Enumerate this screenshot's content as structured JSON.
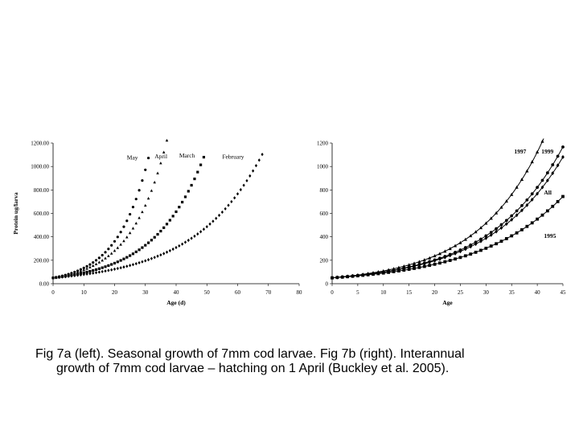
{
  "chart_data": [
    {
      "type": "scatter",
      "title": "",
      "xlabel": "Age (d)",
      "ylabel": "Protein ug/larva",
      "xlim": [
        0,
        80
      ],
      "ylim": [
        0,
        1200
      ],
      "xticks": [
        "0",
        "10",
        "20",
        "30",
        "40",
        "50",
        "60",
        "70",
        "80"
      ],
      "yticks": [
        "0.00",
        "200.00",
        "400.00",
        "600.00",
        "800.00",
        "1000.00",
        "1200.00"
      ],
      "grid": false,
      "series": [
        {
          "name": "May",
          "marker": "circle",
          "x0": 0,
          "x1": 31,
          "dx": 1,
          "y0": 50,
          "k": 0.0989
        },
        {
          "name": "April",
          "marker": "triangle",
          "x0": 0,
          "x1": 37,
          "dx": 1,
          "y0": 50,
          "k": 0.0864
        },
        {
          "name": "March",
          "marker": "square",
          "x0": 0,
          "x1": 49,
          "dx": 1,
          "y0": 50,
          "k": 0.0627
        },
        {
          "name": "February",
          "marker": "diamond",
          "x0": 0,
          "x1": 68,
          "dx": 1,
          "y0": 50,
          "k": 0.0455
        }
      ]
    },
    {
      "type": "line",
      "title": "",
      "xlabel": "Age",
      "ylabel": "",
      "xlim": [
        0,
        45
      ],
      "ylim": [
        0,
        1200
      ],
      "xticks": [
        "0",
        "5",
        "10",
        "15",
        "20",
        "25",
        "30",
        "35",
        "40",
        "45"
      ],
      "yticks": [
        "0",
        "200",
        "400",
        "600",
        "800",
        "1000",
        "1200"
      ],
      "grid": false,
      "series": [
        {
          "name": "1997",
          "marker": "triangle",
          "x0": 0,
          "x1": 42,
          "dx": 1,
          "y0": 50,
          "k": 0.0778
        },
        {
          "name": "1999",
          "marker": "circle",
          "x0": 0,
          "x1": 45,
          "dx": 1,
          "y0": 50,
          "k": 0.07
        },
        {
          "name": "All",
          "marker": "diamond",
          "x0": 0,
          "x1": 45,
          "dx": 1,
          "y0": 50,
          "k": 0.0683
        },
        {
          "name": "1995",
          "marker": "square",
          "x0": 0,
          "x1": 45,
          "dx": 1,
          "y0": 50,
          "k": 0.06
        }
      ]
    }
  ],
  "labels_a": [
    {
      "text": "May",
      "x": 24,
      "y": 1060
    },
    {
      "text": "April",
      "x": 33,
      "y": 1070
    },
    {
      "text": "March",
      "x": 41,
      "y": 1075
    },
    {
      "text": "February",
      "x": 55,
      "y": 1065
    }
  ],
  "labels_b": [
    {
      "text": "1997",
      "x": 35.5,
      "y": 1110
    },
    {
      "text": "1999",
      "x": 40.8,
      "y": 1110
    },
    {
      "text": "All",
      "x": 41.3,
      "y": 760
    },
    {
      "text": "1995",
      "x": 41.3,
      "y": 390
    }
  ],
  "caption": {
    "line1": "Fig 7a (left). Seasonal growth of 7mm cod larvae. Fig 7b (right). Interannual",
    "line2": "growth of 7mm cod larvae – hatching on 1 April (Buckley et al. 2005)."
  }
}
